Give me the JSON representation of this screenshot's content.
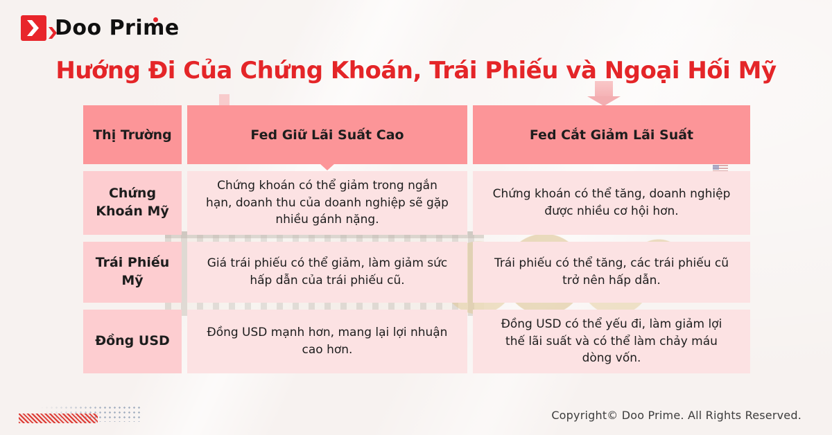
{
  "brand": {
    "name": "Doo Prime"
  },
  "title": "Hướng Đi Của Chứng Khoán, Trái Phiếu và Ngoại Hối Mỹ",
  "table": {
    "headers": {
      "market": "Thị Trường",
      "hold": "Fed Giữ Lãi Suất Cao",
      "cut": "Fed Cắt Giảm Lãi Suất"
    },
    "rows": [
      {
        "label": "Chứng Khoán Mỹ",
        "hold": "Chứng khoán có thể giảm trong ngắn hạn, doanh thu của doanh nghiệp sẽ gặp nhiều gánh nặng.",
        "cut": "Chứng khoán có thể tăng, doanh nghiệp được nhiều cơ hội hơn."
      },
      {
        "label": "Trái Phiếu Mỹ",
        "hold": "Giá trái phiếu có thể giảm, làm giảm sức hấp dẫn của trái phiếu cũ.",
        "cut": "Trái phiếu có thể tăng, các trái phiếu cũ trở nên hấp dẫn."
      },
      {
        "label": "Đồng USD",
        "hold": "Đồng USD mạnh hơn, mang lại lợi nhuận cao hơn.",
        "cut": "Đồng USD có thể yếu đi, làm giảm lợi thế lãi suất và có thể làm chảy máu dòng vốn."
      }
    ]
  },
  "footer": {
    "copyright": "Copyright© Doo Prime. All Rights Reserved."
  },
  "colors": {
    "brand_red": "#E8252B",
    "title_red": "#E42528",
    "header_pink": "#FC9598",
    "label_pink": "#FDCDD0",
    "cell_pink": "#FCE2E3",
    "background": "#F7F2F0",
    "halftone_grey": "#A6B2C3"
  }
}
